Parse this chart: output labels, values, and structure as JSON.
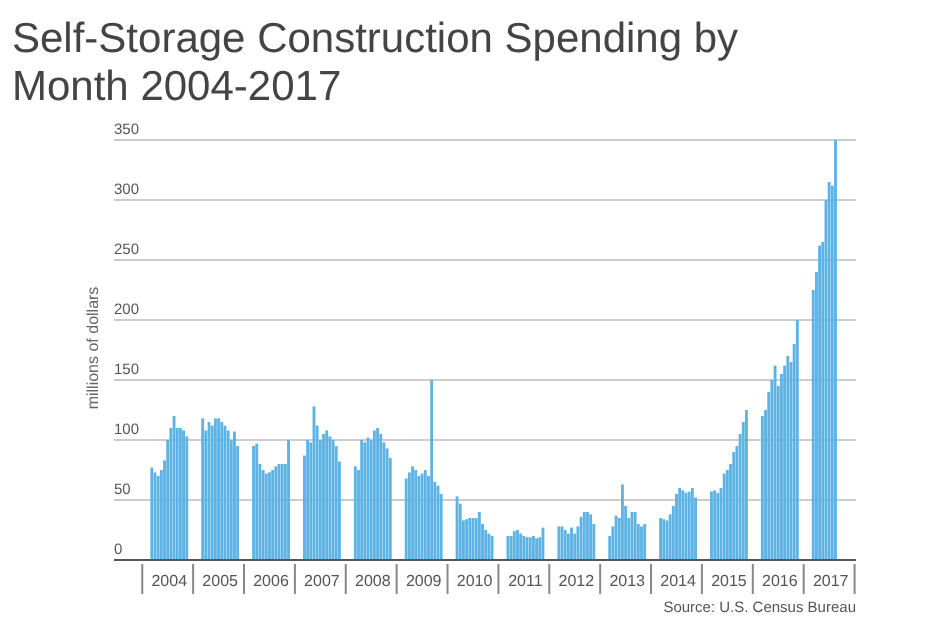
{
  "chart_data": {
    "type": "bar",
    "title": "Self-Storage Construction Spending by Month 2004-2017",
    "ylabel": "millions of dollars",
    "annotations": [
      "Source: U.S. Census Bureau"
    ],
    "categories": [
      null,
      null,
      null,
      null,
      null,
      null,
      null,
      "2004",
      null,
      null,
      null,
      null,
      null,
      null,
      null,
      null,
      null,
      null,
      null,
      null,
      null,
      null,
      null,
      "2005",
      null,
      null,
      null,
      null,
      null,
      null,
      null,
      null,
      null,
      null,
      null,
      null,
      null,
      null,
      null,
      "2006",
      null,
      null,
      null,
      null,
      null,
      null,
      null,
      null,
      null,
      null,
      null,
      null,
      null,
      null,
      null,
      "2007",
      null,
      null,
      null,
      null,
      null,
      null,
      null,
      null,
      null,
      null,
      null,
      null,
      null,
      null,
      null,
      "2008",
      null,
      null,
      null,
      null,
      null,
      null,
      null,
      null,
      null,
      null,
      null,
      null,
      null,
      null,
      null,
      "2009",
      null,
      null,
      null,
      null,
      null,
      null,
      null,
      null,
      null,
      null,
      null,
      null,
      null,
      null,
      null,
      "2010",
      null,
      null,
      null,
      null,
      null,
      null,
      null,
      null,
      null,
      null,
      null,
      null,
      null,
      null,
      null,
      "2011",
      null,
      null,
      null,
      null,
      null,
      null,
      null,
      null,
      null,
      null,
      null,
      null,
      null,
      null,
      null,
      "2012",
      null,
      null,
      null,
      null,
      null,
      null,
      null,
      null,
      null,
      null,
      null,
      null,
      null,
      null,
      null,
      "2013",
      null,
      null,
      null,
      null,
      null,
      null,
      null,
      null,
      null,
      null,
      null,
      null,
      null,
      null,
      null,
      "2014",
      null,
      null,
      null,
      null,
      null,
      null,
      null,
      null,
      null,
      null,
      null,
      null,
      null,
      null,
      null,
      "2015",
      null,
      null,
      null,
      null,
      null,
      null,
      null,
      null,
      null,
      null,
      null,
      null,
      null,
      null,
      null,
      "2016",
      null,
      null,
      null,
      null,
      null,
      null,
      null,
      null,
      null,
      null,
      null,
      null,
      null,
      null,
      null,
      "2017",
      null,
      null,
      null,
      null,
      null,
      null,
      null,
      null
    ],
    "values": [
      null,
      null,
      77,
      73,
      70,
      75,
      83,
      100,
      110,
      120,
      110,
      110,
      108,
      103,
      null,
      null,
      null,
      null,
      118,
      108,
      115,
      112,
      118,
      118,
      115,
      112,
      108,
      100,
      107,
      95,
      null,
      null,
      null,
      null,
      95,
      97,
      80,
      75,
      72,
      73,
      75,
      78,
      80,
      80,
      80,
      100,
      null,
      null,
      null,
      null,
      87,
      100,
      98,
      128,
      112,
      100,
      105,
      108,
      103,
      100,
      95,
      82,
      null,
      null,
      null,
      null,
      78,
      75,
      100,
      98,
      102,
      100,
      108,
      110,
      105,
      98,
      93,
      85,
      null,
      null,
      null,
      null,
      68,
      73,
      78,
      75,
      70,
      72,
      75,
      70,
      150,
      65,
      62,
      55,
      null,
      null,
      null,
      null,
      53,
      47,
      33,
      34,
      35,
      35,
      35,
      40,
      30,
      25,
      22,
      20,
      null,
      null,
      null,
      null,
      20,
      20,
      24,
      25,
      22,
      20,
      19,
      19,
      20,
      18,
      19,
      27,
      null,
      null,
      null,
      null,
      28,
      28,
      25,
      22,
      27,
      22,
      28,
      36,
      40,
      40,
      38,
      30,
      null,
      null,
      null,
      null,
      20,
      28,
      37,
      35,
      63,
      45,
      35,
      40,
      40,
      30,
      28,
      30,
      null,
      null,
      null,
      null,
      35,
      34,
      33,
      38,
      45,
      55,
      60,
      58,
      56,
      57,
      60,
      52,
      null,
      null,
      null,
      null,
      57,
      58,
      56,
      60,
      72,
      75,
      80,
      90,
      95,
      105,
      115,
      125,
      null,
      null,
      null,
      null,
      120,
      125,
      140,
      150,
      162,
      145,
      155,
      162,
      170,
      165,
      180,
      200,
      null,
      null,
      null,
      null,
      225,
      240,
      262,
      265,
      300,
      315,
      312,
      350,
      null,
      null,
      null,
      null,
      null,
      null
    ],
    "color": "#5db3e4",
    "ylim": [
      0,
      350
    ],
    "yticks": [
      0,
      50,
      100,
      150,
      200,
      250,
      300,
      350
    ],
    "grid": "y"
  }
}
